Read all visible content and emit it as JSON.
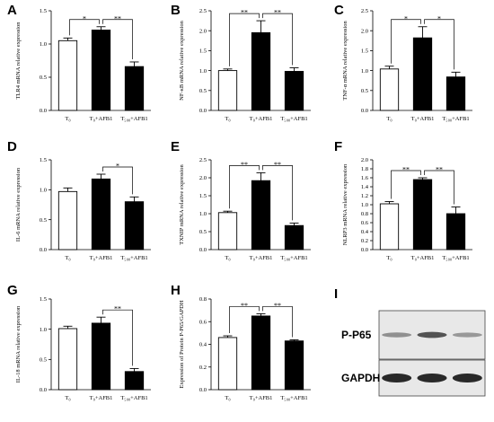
{
  "chart_data": [
    {
      "type": "bar",
      "panel": "A",
      "ylabel": "TLR4 mRNA relative expression",
      "ylim": [
        0,
        1.5
      ],
      "yticks": [
        "0.0",
        "0.5",
        "1.0",
        "1.5"
      ],
      "categories": [
        "T₀",
        "T₀+AFB1",
        "T₅₀₀+AFB1"
      ],
      "values": [
        1.05,
        1.21,
        0.66
      ],
      "errors": [
        0.04,
        0.05,
        0.07
      ],
      "fills": [
        "#ffffff",
        "#000000",
        "#000000"
      ],
      "brackets": [
        {
          "from": 0,
          "to": 1,
          "label": "*"
        },
        {
          "from": 1,
          "to": 2,
          "label": "**"
        }
      ]
    },
    {
      "type": "bar",
      "panel": "B",
      "ylabel": "NF-κB mRNA relative expression",
      "ylim": [
        0,
        2.5
      ],
      "yticks": [
        "0.0",
        "0.5",
        "1.0",
        "1.5",
        "2.0",
        "2.5"
      ],
      "categories": [
        "T₀",
        "T₀+AFB1",
        "T₅₀₀+AFB1"
      ],
      "values": [
        1.0,
        1.95,
        0.98
      ],
      "errors": [
        0.04,
        0.3,
        0.09
      ],
      "fills": [
        "#ffffff",
        "#000000",
        "#000000"
      ],
      "brackets": [
        {
          "from": 0,
          "to": 1,
          "label": "**"
        },
        {
          "from": 1,
          "to": 2,
          "label": "**"
        }
      ]
    },
    {
      "type": "bar",
      "panel": "C",
      "ylabel": "TNF-α mRNA relative expression",
      "ylim": [
        0,
        2.5
      ],
      "yticks": [
        "0.0",
        "0.5",
        "1.0",
        "1.5",
        "2.0",
        "2.5"
      ],
      "categories": [
        "T₀",
        "T₀+AFB1",
        "T₅₀₀+AFB1"
      ],
      "values": [
        1.04,
        1.82,
        0.84
      ],
      "errors": [
        0.07,
        0.28,
        0.12
      ],
      "fills": [
        "#ffffff",
        "#000000",
        "#000000"
      ],
      "brackets": [
        {
          "from": 0,
          "to": 1,
          "label": "*"
        },
        {
          "from": 1,
          "to": 2,
          "label": "*"
        }
      ]
    },
    {
      "type": "bar",
      "panel": "D",
      "ylabel": "IL-6 mRNA relative expression",
      "ylim": [
        0,
        1.5
      ],
      "yticks": [
        "0.0",
        "0.5",
        "1.0",
        "1.5"
      ],
      "categories": [
        "T₀",
        "T₀+AFB1",
        "T₅₀₀+AFB1"
      ],
      "values": [
        0.97,
        1.18,
        0.8
      ],
      "errors": [
        0.06,
        0.08,
        0.08
      ],
      "fills": [
        "#ffffff",
        "#000000",
        "#000000"
      ],
      "brackets": [
        {
          "from": 1,
          "to": 2,
          "label": "*"
        }
      ]
    },
    {
      "type": "bar",
      "panel": "E",
      "ylabel": "TXNIP mRNA relative expression",
      "ylim": [
        0,
        2.5
      ],
      "yticks": [
        "0.0",
        "0.5",
        "1.0",
        "1.5",
        "2.0",
        "2.5"
      ],
      "categories": [
        "T₀",
        "T₀+AFB1",
        "T₅₀₀+AFB1"
      ],
      "values": [
        1.03,
        1.92,
        0.67
      ],
      "errors": [
        0.04,
        0.22,
        0.07
      ],
      "fills": [
        "#ffffff",
        "#000000",
        "#000000"
      ],
      "brackets": [
        {
          "from": 0,
          "to": 1,
          "label": "**"
        },
        {
          "from": 1,
          "to": 2,
          "label": "**"
        }
      ]
    },
    {
      "type": "bar",
      "panel": "F",
      "ylabel": "NLRP3 mRNA relative expression",
      "ylim": [
        0,
        2.0
      ],
      "yticks": [
        "0.0",
        "0.2",
        "0.4",
        "0.6",
        "0.8",
        "1.0",
        "1.2",
        "1.4",
        "1.6",
        "1.8",
        "2.0"
      ],
      "categories": [
        "T₀",
        "T₀+AFB1",
        "T₅₀₀+AFB1"
      ],
      "values": [
        1.02,
        1.56,
        0.8
      ],
      "errors": [
        0.05,
        0.04,
        0.15
      ],
      "fills": [
        "#ffffff",
        "#000000",
        "#000000"
      ],
      "brackets": [
        {
          "from": 0,
          "to": 1,
          "label": "**"
        },
        {
          "from": 1,
          "to": 2,
          "label": "**"
        }
      ]
    },
    {
      "type": "bar",
      "panel": "G",
      "ylabel": "IL-18 mRNA relative expression",
      "ylim": [
        0,
        1.5
      ],
      "yticks": [
        "0.0",
        "0.5",
        "1.0",
        "1.5"
      ],
      "categories": [
        "T₀",
        "T₀+AFB1",
        "T₅₀₀+AFB1"
      ],
      "values": [
        1.01,
        1.1,
        0.3
      ],
      "errors": [
        0.04,
        0.1,
        0.05
      ],
      "fills": [
        "#ffffff",
        "#000000",
        "#000000"
      ],
      "brackets": [
        {
          "from": 1,
          "to": 2,
          "label": "**"
        }
      ]
    },
    {
      "type": "bar",
      "panel": "H",
      "ylabel": "Expression of Protein P-P65/GAPDH",
      "ylim": [
        0,
        0.8
      ],
      "yticks": [
        "0.0",
        "0.2",
        "0.4",
        "0.6",
        "0.8"
      ],
      "categories": [
        "T₀",
        "T₀+AFB1",
        "T₅₀₀+AFB1"
      ],
      "values": [
        0.46,
        0.65,
        0.43
      ],
      "errors": [
        0.015,
        0.02,
        0.01
      ],
      "fills": [
        "#ffffff",
        "#000000",
        "#000000"
      ],
      "brackets": [
        {
          "from": 0,
          "to": 1,
          "label": "**"
        },
        {
          "from": 1,
          "to": 2,
          "label": "**"
        }
      ]
    }
  ],
  "blot": {
    "panel": "I",
    "rows": [
      {
        "label": "P-P65",
        "intensity": [
          0.35,
          0.7,
          0.3
        ]
      },
      {
        "label": "GAPDH",
        "intensity": [
          0.95,
          0.95,
          0.95
        ]
      }
    ]
  }
}
